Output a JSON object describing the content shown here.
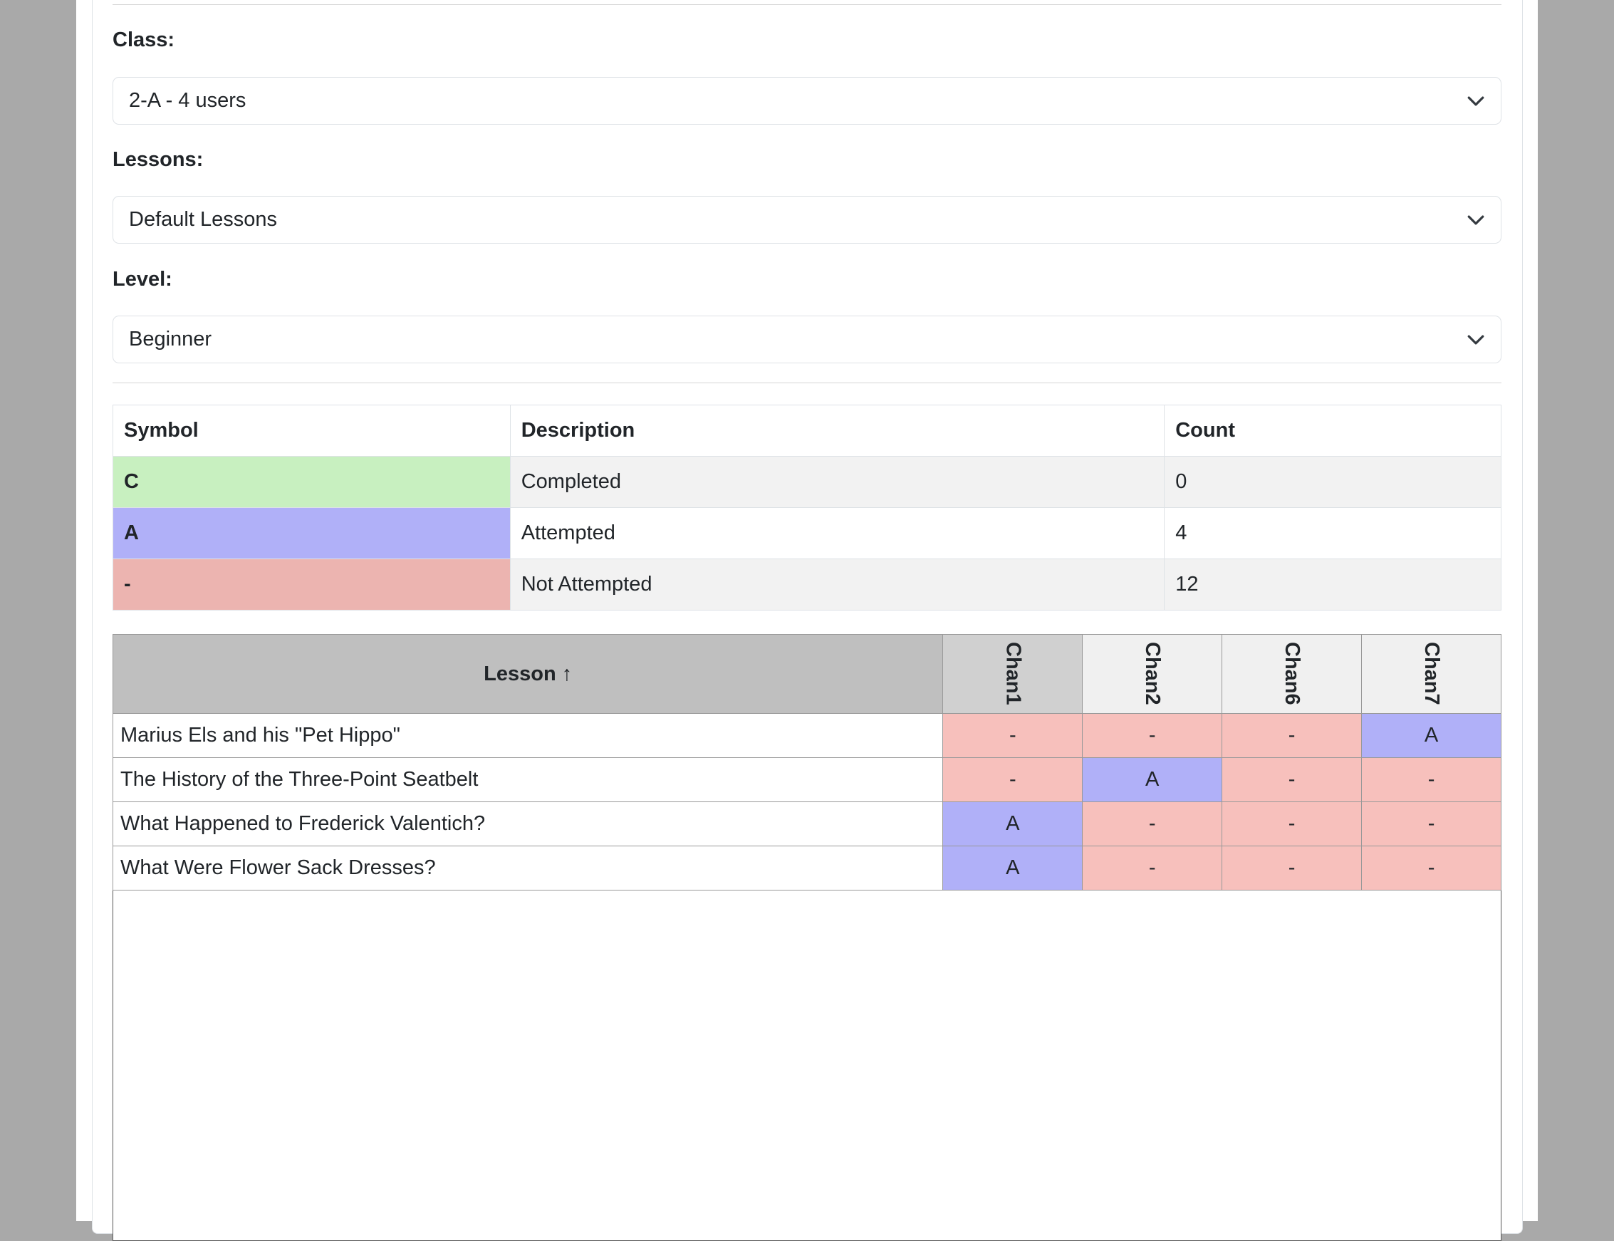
{
  "filters": {
    "class": {
      "label": "Class:",
      "value": "2-A - 4 users"
    },
    "lessons": {
      "label": "Lessons:",
      "value": "Default Lessons"
    },
    "level": {
      "label": "Level:",
      "value": "Beginner"
    }
  },
  "legend": {
    "headers": [
      "Symbol",
      "Description",
      "Count"
    ],
    "rows": [
      {
        "symbol": "C",
        "description": "Completed",
        "count": "0",
        "color": "#c8f0c0"
      },
      {
        "symbol": "A",
        "description": "Attempted",
        "count": "4",
        "color": "#b0b0f8"
      },
      {
        "symbol": "-",
        "description": "Not Attempted",
        "count": "12",
        "color": "#ecb4b0"
      }
    ]
  },
  "grid": {
    "lesson_header": "Lesson ↑",
    "columns": [
      "Chan1",
      "Chan2",
      "Chan6",
      "Chan7"
    ],
    "rows": [
      {
        "lesson": "Marius Els and his \"Pet Hippo\"",
        "cells": [
          "-",
          "-",
          "-",
          "A"
        ]
      },
      {
        "lesson": "The History of the Three-Point Seatbelt",
        "cells": [
          "-",
          "A",
          "-",
          "-"
        ]
      },
      {
        "lesson": "What Happened to Frederick Valentich?",
        "cells": [
          "A",
          "-",
          "-",
          "-"
        ]
      },
      {
        "lesson": "What Were Flower Sack Dresses?",
        "cells": [
          "A",
          "-",
          "-",
          "-"
        ]
      }
    ]
  }
}
